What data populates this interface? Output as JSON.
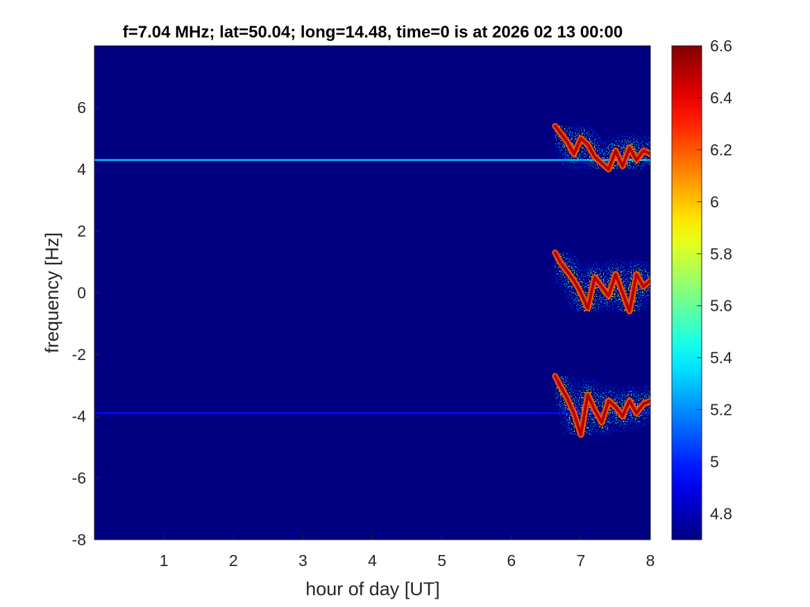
{
  "chart_data": {
    "type": "heatmap",
    "title": "f=7.04 MHz;  lat=50.04; long=14.48, time=0 is at 2026 02 13 00:00",
    "xlabel": "hour of day [UT]",
    "ylabel": "frequency [Hz]",
    "xlim": [
      0,
      8
    ],
    "ylim": [
      -8,
      8
    ],
    "x_ticks": [
      1,
      2,
      3,
      4,
      5,
      6,
      7,
      8
    ],
    "y_ticks": [
      -8,
      -6,
      -4,
      -2,
      0,
      2,
      4,
      6
    ],
    "colorbar": {
      "colormap": "jet",
      "clim": [
        4.7,
        6.6
      ],
      "ticks": [
        "4.8",
        "5",
        "5.2",
        "5.4",
        "5.6",
        "5.8",
        "6",
        "6.2",
        "6.4",
        "6.6"
      ]
    },
    "background_value": 4.7,
    "features": [
      {
        "kind": "steady-line",
        "freq_hz": 4.3,
        "from_hour": 0,
        "to_hour": 8,
        "value": 5.3
      },
      {
        "kind": "steady-line",
        "freq_hz": -3.9,
        "from_hour": 0,
        "to_hour": 8,
        "value": 4.95
      },
      {
        "kind": "trace",
        "value": 6.5,
        "x": [
          6.63,
          6.7,
          6.8,
          6.9,
          7.0,
          7.1,
          7.2,
          7.3,
          7.4,
          7.5,
          7.6,
          7.7,
          7.8,
          7.9,
          8.0
        ],
        "y": [
          5.4,
          5.2,
          4.9,
          4.5,
          5.0,
          4.8,
          4.4,
          4.2,
          4.0,
          4.6,
          4.1,
          4.7,
          4.3,
          4.6,
          4.5
        ]
      },
      {
        "kind": "trace",
        "value": 6.5,
        "x": [
          6.63,
          6.7,
          6.8,
          6.9,
          7.0,
          7.1,
          7.2,
          7.3,
          7.4,
          7.5,
          7.6,
          7.7,
          7.8,
          7.9,
          8.0
        ],
        "y": [
          1.3,
          1.0,
          0.7,
          0.4,
          0.0,
          -0.5,
          0.5,
          0.2,
          -0.1,
          0.6,
          0.0,
          -0.6,
          0.6,
          0.2,
          0.4
        ]
      },
      {
        "kind": "trace",
        "value": 6.5,
        "x": [
          6.63,
          6.7,
          6.8,
          6.9,
          7.0,
          7.1,
          7.2,
          7.3,
          7.4,
          7.5,
          7.6,
          7.7,
          7.8,
          7.9,
          8.0
        ],
        "y": [
          -2.7,
          -3.0,
          -3.4,
          -3.9,
          -4.6,
          -3.3,
          -3.8,
          -4.2,
          -3.5,
          -3.7,
          -4.0,
          -3.5,
          -3.9,
          -3.6,
          -3.5
        ]
      }
    ]
  }
}
